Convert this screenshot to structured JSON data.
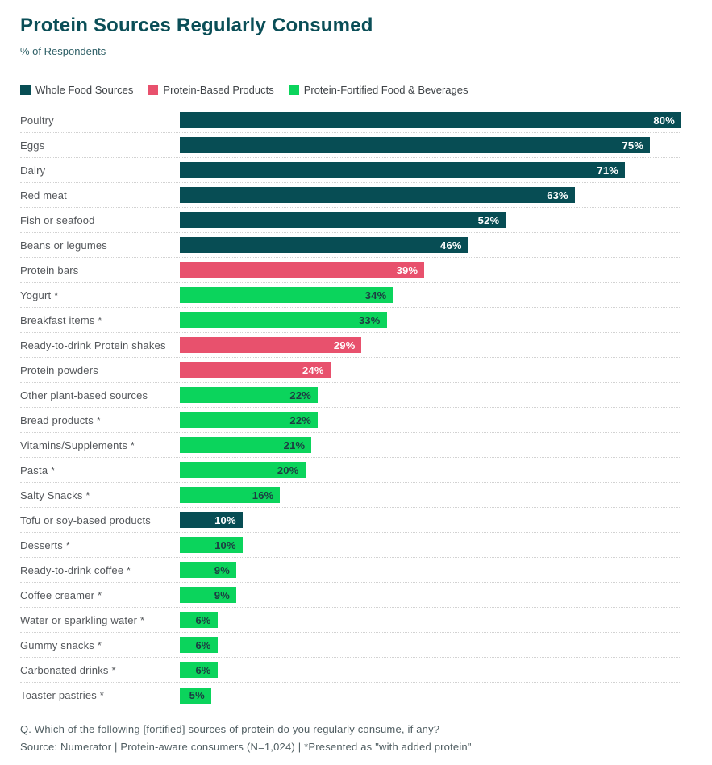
{
  "page": {
    "title": "Protein Sources Regularly Consumed",
    "subtitle": "% of Respondents",
    "footer": {
      "question": "Q. Which of the following [fortified] sources of protein do you regularly consume, if any?",
      "source": "Source: Numerator | Protein-aware consumers (N=1,024) | *Presented as \"with added protein\""
    }
  },
  "chart_data": {
    "type": "bar",
    "orientation": "horizontal",
    "title": "Protein Sources Regularly Consumed",
    "subtitle": "% of Respondents",
    "value_unit": "%",
    "xlim": [
      0,
      80
    ],
    "grid": "dotted-row-separators",
    "legend_position": "top",
    "legend": [
      {
        "id": "whole",
        "label": "Whole Food Sources",
        "color": "#074d54",
        "value_text_color": "#ffffff"
      },
      {
        "id": "based",
        "label": "Protein-Based Products",
        "color": "#e8516d",
        "value_text_color": "#ffffff"
      },
      {
        "id": "fortified",
        "label": "Protein-Fortified Food & Beverages",
        "color": "#0bd45c",
        "value_text_color": "#1d3c42"
      }
    ],
    "rows": [
      {
        "label": "Poultry",
        "value": 80,
        "display": "80%",
        "group": "whole"
      },
      {
        "label": "Eggs",
        "value": 75,
        "display": "75%",
        "group": "whole"
      },
      {
        "label": "Dairy",
        "value": 71,
        "display": "71%",
        "group": "whole"
      },
      {
        "label": "Red meat",
        "value": 63,
        "display": "63%",
        "group": "whole"
      },
      {
        "label": "Fish or seafood",
        "value": 52,
        "display": "52%",
        "group": "whole"
      },
      {
        "label": "Beans or legumes",
        "value": 46,
        "display": "46%",
        "group": "whole"
      },
      {
        "label": "Protein bars",
        "value": 39,
        "display": "39%",
        "group": "based"
      },
      {
        "label": "Yogurt *",
        "value": 34,
        "display": "34%",
        "group": "fortified"
      },
      {
        "label": "Breakfast items *",
        "value": 33,
        "display": "33%",
        "group": "fortified"
      },
      {
        "label": "Ready-to-drink Protein shakes",
        "value": 29,
        "display": "29%",
        "group": "based"
      },
      {
        "label": "Protein powders",
        "value": 24,
        "display": "24%",
        "group": "based"
      },
      {
        "label": "Other plant-based sources",
        "value": 22,
        "display": "22%",
        "group": "fortified"
      },
      {
        "label": "Bread products *",
        "value": 22,
        "display": "22%",
        "group": "fortified"
      },
      {
        "label": "Vitamins/Supplements *",
        "value": 21,
        "display": "21%",
        "group": "fortified"
      },
      {
        "label": "Pasta *",
        "value": 20,
        "display": "20%",
        "group": "fortified"
      },
      {
        "label": "Salty Snacks *",
        "value": 16,
        "display": "16%",
        "group": "fortified"
      },
      {
        "label": "Tofu or soy-based products",
        "value": 10,
        "display": "10%",
        "group": "whole"
      },
      {
        "label": "Desserts *",
        "value": 10,
        "display": "10%",
        "group": "fortified"
      },
      {
        "label": "Ready-to-drink coffee *",
        "value": 9,
        "display": "9%",
        "group": "fortified"
      },
      {
        "label": "Coffee creamer *",
        "value": 9,
        "display": "9%",
        "group": "fortified"
      },
      {
        "label": "Water or sparkling water *",
        "value": 6,
        "display": "6%",
        "group": "fortified"
      },
      {
        "label": "Gummy snacks *",
        "value": 6,
        "display": "6%",
        "group": "fortified"
      },
      {
        "label": "Carbonated drinks *",
        "value": 6,
        "display": "6%",
        "group": "fortified"
      },
      {
        "label": "Toaster pastries *",
        "value": 5,
        "display": "5%",
        "group": "fortified"
      }
    ]
  }
}
